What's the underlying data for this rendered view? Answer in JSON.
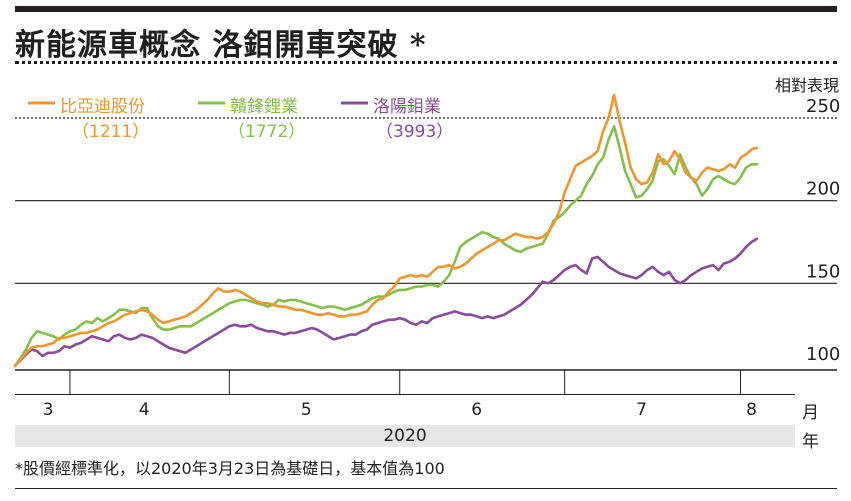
{
  "title": "新能源車概念 洛鉬開車突破 *",
  "footnote": "*股價經標準化，以2020年3月23日為基礎日，基本值為100",
  "chart_data": {
    "type": "line",
    "title": "新能源車概念 洛鉬開車突破 *",
    "ylabel": "相對表現",
    "xlabel": "2020",
    "x_unit": "月",
    "year_unit": "年",
    "ylim": [
      95,
      268
    ],
    "yticks": [
      100,
      150,
      200,
      250
    ],
    "xticks": [
      {
        "label": "3",
        "x": 6
      },
      {
        "label": "4",
        "x": 23.5
      },
      {
        "label": "5",
        "x": 53
      },
      {
        "label": "6",
        "x": 84
      },
      {
        "label": "7",
        "x": 114
      },
      {
        "label": "8",
        "x": 134
      }
    ],
    "x_month_boundaries": [
      10,
      39,
      70,
      100,
      132
    ],
    "x_range": [
      0,
      137
    ],
    "series": [
      {
        "name": "比亞迪股份",
        "code": "（1211）",
        "color": "#f0962e",
        "x": [
          0,
          2,
          3,
          4,
          5,
          6,
          7,
          8,
          9,
          10,
          11,
          12,
          13,
          14,
          15,
          16,
          17,
          18,
          19,
          20,
          21,
          22,
          23,
          24,
          25,
          26,
          27,
          28,
          29,
          30,
          31,
          32,
          33,
          34,
          35,
          36,
          37,
          38,
          39,
          40,
          41,
          42,
          43,
          44,
          45,
          46,
          47,
          48,
          49,
          50,
          51,
          52,
          53,
          54,
          55,
          56,
          57,
          58,
          59,
          60,
          61,
          62,
          63,
          64,
          65,
          66,
          67,
          68,
          69,
          70,
          71,
          72,
          73,
          74,
          75,
          76,
          77,
          78,
          79,
          80,
          81,
          82,
          83,
          84,
          85,
          86,
          87,
          88,
          89,
          90,
          91,
          92,
          93,
          94,
          95,
          96,
          97,
          98,
          99,
          100,
          101,
          102,
          103,
          104,
          105,
          106,
          107,
          108,
          109,
          110,
          111,
          112,
          113,
          114,
          115,
          116,
          117,
          118,
          119,
          120,
          121,
          122,
          123,
          124,
          125,
          126,
          127,
          128,
          129,
          130,
          131,
          132,
          133,
          134,
          135
        ],
        "values": [
          100,
          108,
          111,
          112,
          112,
          113,
          114,
          117,
          117,
          118,
          119,
          120,
          120,
          121,
          122,
          124,
          126,
          127,
          129,
          131,
          132,
          133,
          134,
          133,
          131,
          128,
          126,
          127,
          128,
          129,
          130,
          132,
          134,
          137,
          140,
          144,
          147,
          145,
          145,
          146,
          145,
          143,
          141,
          139,
          138,
          138,
          137,
          136,
          136,
          135,
          134,
          134,
          133,
          132,
          131,
          131,
          132,
          131,
          130,
          130,
          131,
          131,
          132,
          133,
          137,
          140,
          141,
          145,
          148,
          153,
          154,
          155,
          154,
          155,
          154,
          157,
          160,
          160,
          161,
          159,
          160,
          162,
          165,
          168,
          170,
          172,
          174,
          176,
          176,
          178,
          180,
          179,
          178,
          178,
          177,
          178,
          181,
          186,
          193,
          205,
          213,
          221,
          223,
          225,
          227,
          230,
          242,
          250,
          264,
          248,
          235,
          220,
          213,
          210,
          211,
          217,
          228,
          222,
          224,
          230,
          225,
          217,
          214,
          212,
          217,
          220,
          219,
          218,
          219,
          222,
          220,
          226,
          228,
          231,
          232
        ]
      },
      {
        "name": "贛鋒鋰業",
        "code": "（1772）",
        "color": "#83c04a",
        "x": [
          0,
          2,
          3,
          4,
          5,
          6,
          7,
          8,
          9,
          10,
          11,
          12,
          13,
          14,
          15,
          16,
          17,
          18,
          19,
          20,
          21,
          22,
          23,
          24,
          25,
          26,
          27,
          28,
          29,
          30,
          31,
          32,
          33,
          34,
          35,
          36,
          37,
          38,
          39,
          40,
          41,
          42,
          43,
          44,
          45,
          46,
          47,
          48,
          49,
          50,
          51,
          52,
          53,
          54,
          55,
          56,
          57,
          58,
          59,
          60,
          61,
          62,
          63,
          64,
          65,
          66,
          67,
          68,
          69,
          70,
          71,
          72,
          73,
          74,
          75,
          76,
          77,
          78,
          79,
          80,
          81,
          82,
          83,
          84,
          85,
          86,
          87,
          88,
          89,
          90,
          91,
          92,
          93,
          94,
          95,
          96,
          97,
          98,
          99,
          100,
          101,
          102,
          103,
          104,
          105,
          106,
          107,
          108,
          109,
          110,
          111,
          112,
          113,
          114,
          115,
          116,
          117,
          118,
          119,
          120,
          121,
          122,
          123,
          124,
          125,
          126,
          127,
          128,
          129,
          130,
          131,
          132,
          133,
          134,
          135
        ],
        "values": [
          100,
          110,
          117,
          121,
          120,
          119,
          118,
          116,
          119,
          121,
          122,
          125,
          127,
          126,
          129,
          127,
          129,
          131,
          134,
          134,
          133,
          132,
          135,
          135,
          129,
          124,
          122,
          122,
          123,
          124,
          124,
          124,
          126,
          128,
          130,
          132,
          134,
          136,
          138,
          139,
          140,
          140,
          139,
          138,
          137,
          136,
          137,
          140,
          139,
          140,
          140,
          139,
          138,
          137,
          136,
          135,
          136,
          136,
          135,
          134,
          135,
          136,
          137,
          139,
          141,
          142,
          142,
          143,
          145,
          146,
          146,
          147,
          148,
          148,
          149,
          149,
          148,
          151,
          155,
          163,
          172,
          175,
          177,
          179,
          181,
          180,
          178,
          177,
          174,
          172,
          170,
          169,
          171,
          172,
          173,
          174,
          180,
          188,
          190,
          193,
          197,
          200,
          203,
          210,
          215,
          222,
          226,
          237,
          245,
          232,
          218,
          210,
          202,
          203,
          207,
          212,
          224,
          225,
          221,
          216,
          228,
          220,
          214,
          210,
          203,
          207,
          213,
          215,
          213,
          211,
          210,
          214,
          220,
          222,
          222
        ]
      },
      {
        "name": "洛陽鉬業",
        "code": "（3993）",
        "color": "#8b4a9c",
        "x": [
          0,
          2,
          3,
          4,
          5,
          6,
          7,
          8,
          9,
          10,
          11,
          12,
          13,
          14,
          15,
          16,
          17,
          18,
          19,
          20,
          21,
          22,
          23,
          24,
          25,
          26,
          27,
          28,
          29,
          30,
          31,
          32,
          33,
          34,
          35,
          36,
          37,
          38,
          39,
          40,
          41,
          42,
          43,
          44,
          45,
          46,
          47,
          48,
          49,
          50,
          51,
          52,
          53,
          54,
          55,
          56,
          57,
          58,
          59,
          60,
          61,
          62,
          63,
          64,
          65,
          66,
          67,
          68,
          69,
          70,
          71,
          72,
          73,
          74,
          75,
          76,
          77,
          78,
          79,
          80,
          81,
          82,
          83,
          84,
          85,
          86,
          87,
          88,
          89,
          90,
          91,
          92,
          93,
          94,
          95,
          96,
          97,
          98,
          99,
          100,
          101,
          102,
          103,
          104,
          105,
          106,
          107,
          108,
          109,
          110,
          111,
          112,
          113,
          114,
          115,
          116,
          117,
          118,
          119,
          120,
          121,
          122,
          123,
          124,
          125,
          126,
          127,
          128,
          129,
          130,
          131,
          132,
          133,
          134,
          135
        ],
        "values": [
          100,
          107,
          110,
          109,
          106,
          108,
          108,
          109,
          112,
          111,
          113,
          114,
          116,
          118,
          117,
          116,
          115,
          118,
          119,
          117,
          116,
          117,
          119,
          118,
          117,
          115,
          113,
          111,
          110,
          109,
          108,
          110,
          112,
          114,
          116,
          118,
          120,
          122,
          124,
          125,
          124,
          124,
          125,
          123,
          122,
          121,
          121,
          120,
          119,
          120,
          120,
          121,
          122,
          123,
          122,
          120,
          118,
          116,
          117,
          118,
          119,
          119,
          121,
          122,
          125,
          126,
          127,
          128,
          128,
          129,
          128,
          126,
          125,
          127,
          126,
          129,
          130,
          131,
          132,
          133,
          132,
          131,
          131,
          130,
          129,
          130,
          129,
          130,
          131,
          133,
          135,
          137,
          140,
          143,
          147,
          151,
          150,
          152,
          155,
          158,
          160,
          161,
          158,
          156,
          165,
          166,
          163,
          160,
          158,
          156,
          155,
          154,
          153,
          155,
          158,
          160,
          157,
          155,
          157,
          152,
          150,
          152,
          155,
          157,
          159,
          160,
          161,
          158,
          162,
          163,
          165,
          168,
          172,
          175,
          177
        ]
      }
    ]
  }
}
